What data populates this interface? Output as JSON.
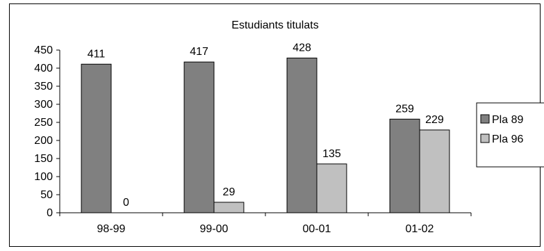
{
  "chart_data": {
    "type": "bar",
    "title": "Estudiants titulats",
    "categories": [
      "98-99",
      "99-00",
      "00-01",
      "01-02"
    ],
    "series": [
      {
        "name": "Pla 89",
        "values": [
          411,
          417,
          428,
          259
        ],
        "color": "#808080"
      },
      {
        "name": "Pla 96",
        "values": [
          0,
          29,
          135,
          229
        ],
        "color": "#c0c0c0"
      }
    ],
    "ylim": [
      0,
      450
    ],
    "yticks": [
      0,
      50,
      100,
      150,
      200,
      250,
      300,
      350,
      400,
      450
    ],
    "xlabel": "",
    "ylabel": "",
    "grid": false,
    "legend": "right",
    "data_labels": true
  }
}
